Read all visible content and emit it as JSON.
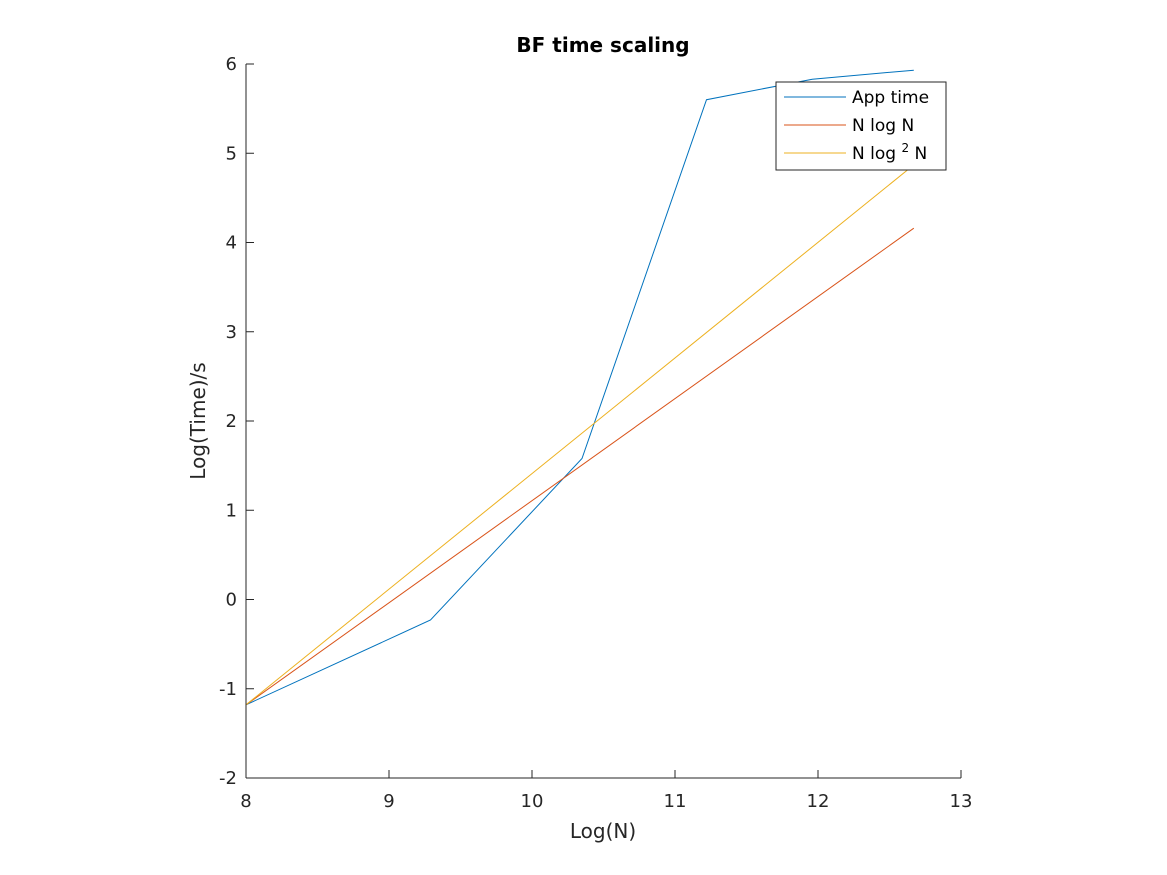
{
  "chart_data": {
    "type": "line",
    "title": "BF time scaling",
    "xlabel": "Log(N)",
    "ylabel": "Log(Time)/s",
    "xlim": [
      8,
      13
    ],
    "ylim": [
      -2,
      6
    ],
    "xticks": [
      "8",
      "9",
      "10",
      "11",
      "12",
      "13"
    ],
    "yticks": [
      "-2",
      "-1",
      "0",
      "1",
      "2",
      "3",
      "4",
      "5",
      "6"
    ],
    "grid": false,
    "legend_position": "top-right",
    "series": [
      {
        "name": "App time",
        "color": "#0072BD",
        "x": [
          8.0,
          9.29,
          10.35,
          11.22,
          11.96,
          12.67
        ],
        "y": [
          -1.18,
          -0.23,
          1.58,
          5.6,
          5.83,
          5.93
        ]
      },
      {
        "name": "N log N",
        "color": "#D95319",
        "x": [
          8.0,
          12.67
        ],
        "y": [
          -1.18,
          4.16
        ]
      },
      {
        "name": "N log",
        "name_sup": "2",
        "name_tail": " N",
        "color": "#EDB120",
        "x": [
          8.0,
          12.67
        ],
        "y": [
          -1.18,
          4.87
        ]
      }
    ]
  }
}
